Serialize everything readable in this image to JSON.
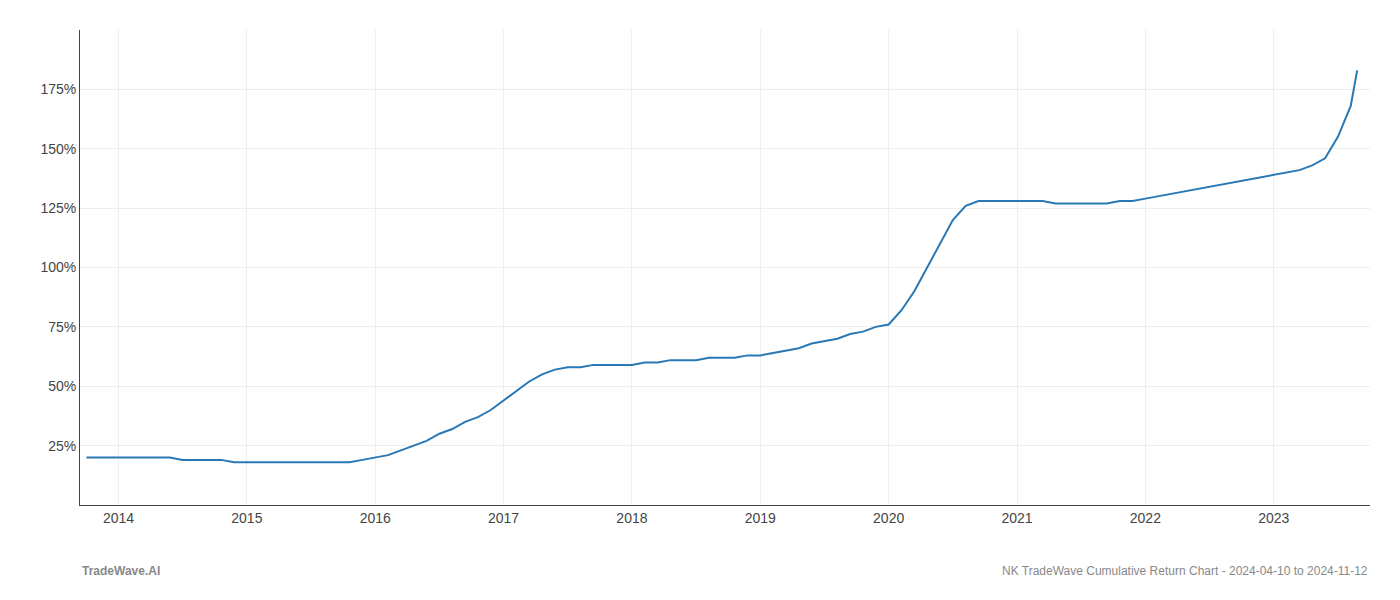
{
  "chart_data": {
    "type": "line",
    "x": [
      2013.75,
      2014.0,
      2014.1,
      2014.2,
      2014.3,
      2014.4,
      2014.5,
      2014.6,
      2014.7,
      2014.8,
      2014.9,
      2015.0,
      2015.1,
      2015.2,
      2015.3,
      2015.4,
      2015.5,
      2015.6,
      2015.7,
      2015.8,
      2015.9,
      2016.0,
      2016.1,
      2016.2,
      2016.3,
      2016.4,
      2016.5,
      2016.6,
      2016.7,
      2016.8,
      2016.9,
      2017.0,
      2017.1,
      2017.2,
      2017.3,
      2017.4,
      2017.5,
      2017.6,
      2017.7,
      2017.8,
      2017.9,
      2018.0,
      2018.1,
      2018.2,
      2018.3,
      2018.4,
      2018.5,
      2018.6,
      2018.7,
      2018.8,
      2018.9,
      2019.0,
      2019.1,
      2019.2,
      2019.3,
      2019.4,
      2019.5,
      2019.6,
      2019.7,
      2019.8,
      2019.9,
      2020.0,
      2020.1,
      2020.2,
      2020.3,
      2020.4,
      2020.5,
      2020.6,
      2020.7,
      2020.8,
      2020.9,
      2021.0,
      2021.1,
      2021.2,
      2021.3,
      2021.4,
      2021.5,
      2021.6,
      2021.7,
      2021.8,
      2021.9,
      2022.0,
      2022.1,
      2022.2,
      2022.3,
      2022.4,
      2022.5,
      2022.6,
      2022.7,
      2022.8,
      2022.9,
      2023.0,
      2023.1,
      2023.2,
      2023.3,
      2023.4,
      2023.5,
      2023.6,
      2023.65
    ],
    "values": [
      20,
      20,
      20,
      20,
      20,
      20,
      19,
      19,
      19,
      19,
      18,
      18,
      18,
      18,
      18,
      18,
      18,
      18,
      18,
      18,
      19,
      20,
      21,
      23,
      25,
      27,
      30,
      32,
      35,
      37,
      40,
      44,
      48,
      52,
      55,
      57,
      58,
      58,
      59,
      59,
      59,
      59,
      60,
      60,
      61,
      61,
      61,
      62,
      62,
      62,
      63,
      63,
      64,
      65,
      66,
      68,
      69,
      70,
      72,
      73,
      75,
      76,
      82,
      90,
      100,
      110,
      120,
      126,
      128,
      128,
      128,
      128,
      128,
      128,
      127,
      127,
      127,
      127,
      127,
      128,
      128,
      129,
      130,
      131,
      132,
      133,
      134,
      135,
      136,
      137,
      138,
      139,
      140,
      141,
      143,
      146,
      155,
      168,
      183
    ],
    "color": "#2878b5",
    "xlim": [
      2013.7,
      2023.75
    ],
    "xticks": [
      2014,
      2015,
      2016,
      2017,
      2018,
      2019,
      2020,
      2021,
      2022,
      2023
    ],
    "ylim": [
      0,
      200
    ],
    "yticks": [
      {
        "value": 25,
        "label": "25%"
      },
      {
        "value": 50,
        "label": "50%"
      },
      {
        "value": 75,
        "label": "75%"
      },
      {
        "value": 100,
        "label": "100%"
      },
      {
        "value": 125,
        "label": "125%"
      },
      {
        "value": 150,
        "label": "150%"
      },
      {
        "value": 175,
        "label": "175%"
      }
    ],
    "grid": true,
    "annotations": [
      "TradeWave.AI",
      "NK TradeWave Cumulative Return Chart - 2024-04-10 to 2024-11-12"
    ]
  }
}
